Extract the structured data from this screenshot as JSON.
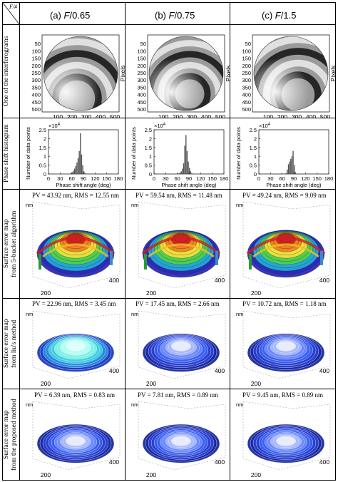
{
  "corner_label": "F/#",
  "columns": [
    {
      "prefix": "(a) ",
      "letter": "F",
      "value": "/0.65"
    },
    {
      "prefix": "(b) ",
      "letter": "F",
      "value": "/0.75"
    },
    {
      "prefix": "(c) ",
      "letter": "F",
      "value": "/1.5"
    }
  ],
  "row_labels": [
    [
      "One of the interferograms"
    ],
    [
      "Phase shift histogram"
    ],
    [
      "Surface error map",
      "from 5-bucket algorithm"
    ],
    [
      "Surface error map",
      "from liu's method"
    ],
    [
      "Surface error map",
      "from the proposed method"
    ]
  ],
  "interferogram": {
    "ylabel": "Pixels",
    "x_ticks": [
      "100",
      "200",
      "300",
      "400",
      "500"
    ],
    "y_ticks": [
      "50",
      "100",
      "150",
      "200",
      "250",
      "300",
      "350",
      "400",
      "450",
      "500"
    ]
  },
  "histogram": {
    "ylabel": "Number of data points",
    "xlabel": "Phase shift angle (deg)",
    "exponent_base": "×10",
    "exponent_power": "4",
    "x_ticks": [
      "0",
      "30",
      "60",
      "90",
      "120",
      "150",
      "180"
    ],
    "y_ticks": [
      "0",
      "0.5",
      "1",
      "1.5",
      "2",
      "2.5"
    ]
  },
  "surface_unit": "nm",
  "surface_ticks": [
    "200",
    "400"
  ],
  "captions": [
    [
      "PV = 43.92 nm, RMS = 12.55 nm",
      "PV = 59.54 nm, RMS = 11.48 nm",
      "PV = 49.24 nm, RMS = 9.09 nm"
    ],
    [
      "PV = 22.96 nm, RMS = 3.45 nm",
      "PV = 17.45 nm, RMS = 2.66 nm",
      "PV = 10.72 nm, RMS = 1.18 nm"
    ],
    [
      "PV = 6.39 nm, RMS = 0.83 nm",
      "PV = 7.81 nm, RMS = 0.89 nm",
      "PV = 9.45 nm, RMS = 0.89 nm"
    ]
  ],
  "chart_data": [
    {
      "type": "bar",
      "series": [
        {
          "values": [
            0,
            0,
            0,
            0,
            0,
            0,
            0,
            0,
            0,
            0,
            0,
            0,
            0,
            0,
            0,
            0,
            0,
            0,
            0.02,
            0.05,
            0.1,
            0.18,
            0.3,
            0.45,
            0.65,
            0.9,
            1.3,
            2.3,
            1.1,
            0.5,
            0.15,
            0.05,
            0.02,
            0,
            0,
            0,
            0,
            0,
            0,
            0,
            0,
            0,
            0,
            0,
            0,
            0,
            0,
            0,
            0,
            0,
            0,
            0,
            0,
            0,
            0,
            0,
            0,
            0,
            0,
            0
          ]
        }
      ],
      "x_range": [
        0,
        180
      ],
      "ylim": [
        0,
        2.5
      ]
    },
    {
      "type": "bar",
      "series": [
        {
          "values": [
            0,
            0,
            0,
            0,
            0,
            0,
            0,
            0,
            0,
            0,
            0,
            0,
            0,
            0,
            0,
            0,
            0,
            0,
            0,
            0,
            0.02,
            0.04,
            0.08,
            0.15,
            0.3,
            0.6,
            1.6,
            2.2,
            1.3,
            0.7,
            0.35,
            0.15,
            0.05,
            0.02,
            0,
            0,
            0,
            0,
            0,
            0,
            0,
            0,
            0,
            0,
            0,
            0,
            0,
            0,
            0,
            0,
            0,
            0,
            0,
            0,
            0,
            0,
            0,
            0,
            0,
            0
          ]
        }
      ],
      "x_range": [
        0,
        180
      ],
      "ylim": [
        0,
        2.5
      ]
    },
    {
      "type": "bar",
      "series": [
        {
          "values": [
            0,
            0,
            0,
            0,
            0,
            0,
            0,
            0,
            0,
            0,
            0,
            0,
            0,
            0,
            0,
            0,
            0,
            0,
            0,
            0,
            0,
            0,
            0,
            0.05,
            0.25,
            0.55,
            0.7,
            0.85,
            1.0,
            1.3,
            0.5,
            0.1,
            0.02,
            0,
            0,
            0,
            0,
            0,
            0,
            0,
            0,
            0,
            0,
            0,
            0,
            0,
            0,
            0,
            0,
            0,
            0,
            0,
            0,
            0,
            0,
            0,
            0,
            0,
            0,
            0
          ]
        }
      ],
      "x_range": [
        0,
        180
      ],
      "ylim": [
        0,
        2.5
      ]
    }
  ]
}
